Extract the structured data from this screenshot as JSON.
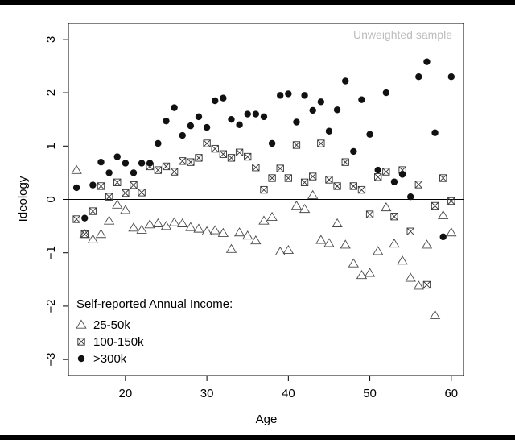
{
  "chart_data": {
    "type": "scatter",
    "title": "",
    "xlabel": "Age",
    "ylabel": "Ideology",
    "xlim": [
      13,
      61.5
    ],
    "ylim": [
      -3.3,
      3.3
    ],
    "x_ticks": [
      20,
      30,
      40,
      50,
      60
    ],
    "y_ticks": [
      -3,
      -2,
      -1,
      0,
      1,
      2,
      3
    ],
    "grid": false,
    "reference_line_y": 0,
    "annotation": "Unweighted sample",
    "legend": {
      "title": "Self-reported Annual Income:",
      "placement": "bottom-left"
    },
    "series": [
      {
        "name": "25-50k",
        "marker": "triangle",
        "points": [
          [
            14,
            0.55
          ],
          [
            15,
            -0.65
          ],
          [
            16,
            -0.75
          ],
          [
            17,
            -0.65
          ],
          [
            18,
            -0.4
          ],
          [
            19,
            -0.1
          ],
          [
            20,
            -0.2
          ],
          [
            21,
            -0.53
          ],
          [
            22,
            -0.57
          ],
          [
            23,
            -0.47
          ],
          [
            24,
            -0.45
          ],
          [
            25,
            -0.5
          ],
          [
            26,
            -0.43
          ],
          [
            27,
            -0.45
          ],
          [
            28,
            -0.52
          ],
          [
            29,
            -0.55
          ],
          [
            30,
            -0.6
          ],
          [
            31,
            -0.58
          ],
          [
            32,
            -0.63
          ],
          [
            33,
            -0.93
          ],
          [
            34,
            -0.62
          ],
          [
            35,
            -0.68
          ],
          [
            36,
            -0.77
          ],
          [
            37,
            -0.4
          ],
          [
            38,
            -0.33
          ],
          [
            39,
            -0.98
          ],
          [
            40,
            -0.95
          ],
          [
            41,
            -0.12
          ],
          [
            42,
            -0.18
          ],
          [
            43,
            0.08
          ],
          [
            44,
            -0.76
          ],
          [
            45,
            -0.82
          ],
          [
            46,
            -0.45
          ],
          [
            47,
            -0.85
          ],
          [
            48,
            -1.2
          ],
          [
            49,
            -1.42
          ],
          [
            50,
            -1.38
          ],
          [
            51,
            -0.97
          ],
          [
            52,
            -0.15
          ],
          [
            53,
            -0.83
          ],
          [
            54,
            -1.15
          ],
          [
            55,
            -1.47
          ],
          [
            56,
            -1.62
          ],
          [
            57,
            -0.85
          ],
          [
            58,
            -2.17
          ],
          [
            59,
            -0.3
          ],
          [
            60,
            -0.62
          ]
        ]
      },
      {
        "name": "100-150k",
        "marker": "boxed-x",
        "points": [
          [
            14,
            -0.37
          ],
          [
            15,
            -0.65
          ],
          [
            16,
            -0.22
          ],
          [
            17,
            0.25
          ],
          [
            18,
            0.05
          ],
          [
            19,
            0.32
          ],
          [
            20,
            0.12
          ],
          [
            21,
            0.27
          ],
          [
            22,
            0.13
          ],
          [
            23,
            0.62
          ],
          [
            24,
            0.55
          ],
          [
            25,
            0.62
          ],
          [
            26,
            0.52
          ],
          [
            27,
            0.72
          ],
          [
            28,
            0.7
          ],
          [
            29,
            0.78
          ],
          [
            30,
            1.05
          ],
          [
            31,
            0.95
          ],
          [
            32,
            0.85
          ],
          [
            33,
            0.78
          ],
          [
            34,
            0.88
          ],
          [
            35,
            0.8
          ],
          [
            36,
            0.6
          ],
          [
            37,
            0.18
          ],
          [
            38,
            0.4
          ],
          [
            39,
            0.58
          ],
          [
            40,
            0.4
          ],
          [
            41,
            1.02
          ],
          [
            42,
            0.32
          ],
          [
            43,
            0.43
          ],
          [
            44,
            1.05
          ],
          [
            45,
            0.37
          ],
          [
            46,
            0.25
          ],
          [
            47,
            0.7
          ],
          [
            48,
            0.25
          ],
          [
            49,
            0.18
          ],
          [
            50,
            -0.28
          ],
          [
            51,
            0.42
          ],
          [
            52,
            0.52
          ],
          [
            53,
            -0.32
          ],
          [
            54,
            0.55
          ],
          [
            55,
            -0.6
          ],
          [
            56,
            0.28
          ],
          [
            57,
            -1.6
          ],
          [
            58,
            -0.12
          ],
          [
            59,
            0.4
          ],
          [
            60,
            -0.03
          ]
        ]
      },
      {
        "name": ">300k",
        "marker": "filled-circle",
        "points": [
          [
            14,
            0.22
          ],
          [
            15,
            -0.35
          ],
          [
            16,
            0.27
          ],
          [
            17,
            0.7
          ],
          [
            18,
            0.5
          ],
          [
            19,
            0.8
          ],
          [
            20,
            0.68
          ],
          [
            21,
            0.5
          ],
          [
            22,
            0.68
          ],
          [
            23,
            0.68
          ],
          [
            24,
            1.05
          ],
          [
            25,
            1.47
          ],
          [
            26,
            1.72
          ],
          [
            27,
            1.2
          ],
          [
            28,
            1.38
          ],
          [
            29,
            1.55
          ],
          [
            30,
            1.35
          ],
          [
            31,
            1.85
          ],
          [
            32,
            1.9
          ],
          [
            33,
            1.5
          ],
          [
            34,
            1.4
          ],
          [
            35,
            1.6
          ],
          [
            36,
            1.6
          ],
          [
            37,
            1.55
          ],
          [
            38,
            1.05
          ],
          [
            39,
            1.95
          ],
          [
            40,
            1.98
          ],
          [
            41,
            1.45
          ],
          [
            42,
            1.95
          ],
          [
            43,
            1.67
          ],
          [
            44,
            1.83
          ],
          [
            45,
            1.28
          ],
          [
            46,
            1.68
          ],
          [
            47,
            2.22
          ],
          [
            48,
            0.9
          ],
          [
            49,
            1.87
          ],
          [
            50,
            1.22
          ],
          [
            51,
            0.55
          ],
          [
            52,
            2.0
          ],
          [
            53,
            0.33
          ],
          [
            54,
            0.47
          ],
          [
            55,
            0.05
          ],
          [
            56,
            2.3
          ],
          [
            57,
            2.58
          ],
          [
            58,
            1.25
          ],
          [
            59,
            -0.7
          ],
          [
            60,
            2.3
          ]
        ]
      }
    ]
  }
}
